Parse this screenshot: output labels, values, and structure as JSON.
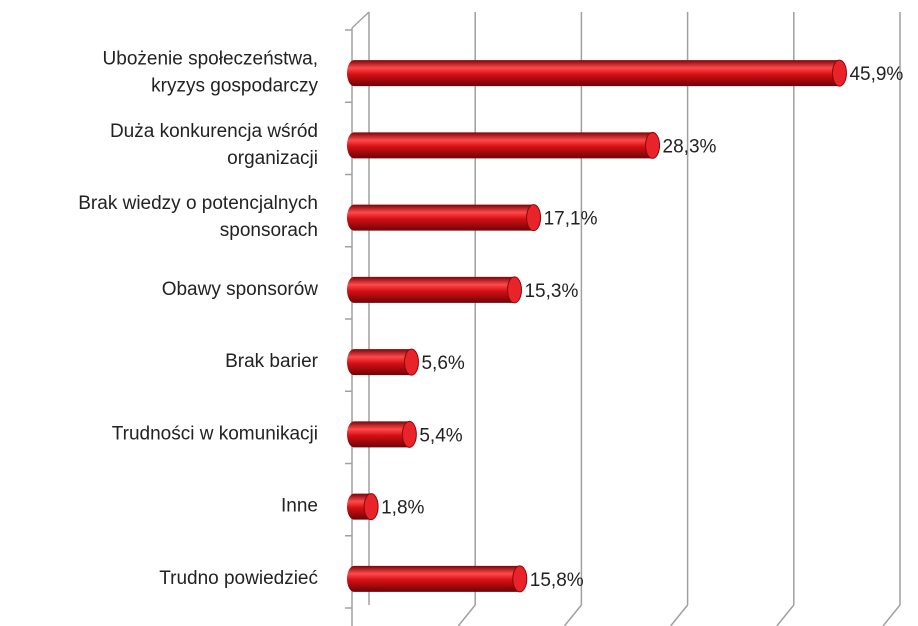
{
  "chart_data": {
    "type": "bar3d",
    "categories": [
      [
        "Ubożenie społeczeństwa,",
        "kryzys gospodarczy"
      ],
      [
        "Duża konkurencja wśród",
        "organizacji"
      ],
      [
        "Brak wiedzy o potencjalnych",
        "sponsorach"
      ],
      [
        "Obawy sponsorów"
      ],
      [
        "Brak barier"
      ],
      [
        "Trudności w komunikacji"
      ],
      [
        "Inne"
      ],
      [
        "Trudno powiedzieć"
      ]
    ],
    "values": [
      45.9,
      28.3,
      17.1,
      15.3,
      5.6,
      5.4,
      1.8,
      15.8
    ],
    "value_labels": [
      "45,9%",
      "28,3%",
      "17,1%",
      "15,3%",
      "5,6%",
      "5,4%",
      "1,8%",
      "15,8%"
    ],
    "color": "#d40f14",
    "xlim": [
      0,
      50
    ],
    "xticks": [
      0,
      10,
      20,
      30,
      40,
      50
    ],
    "grid": true
  }
}
